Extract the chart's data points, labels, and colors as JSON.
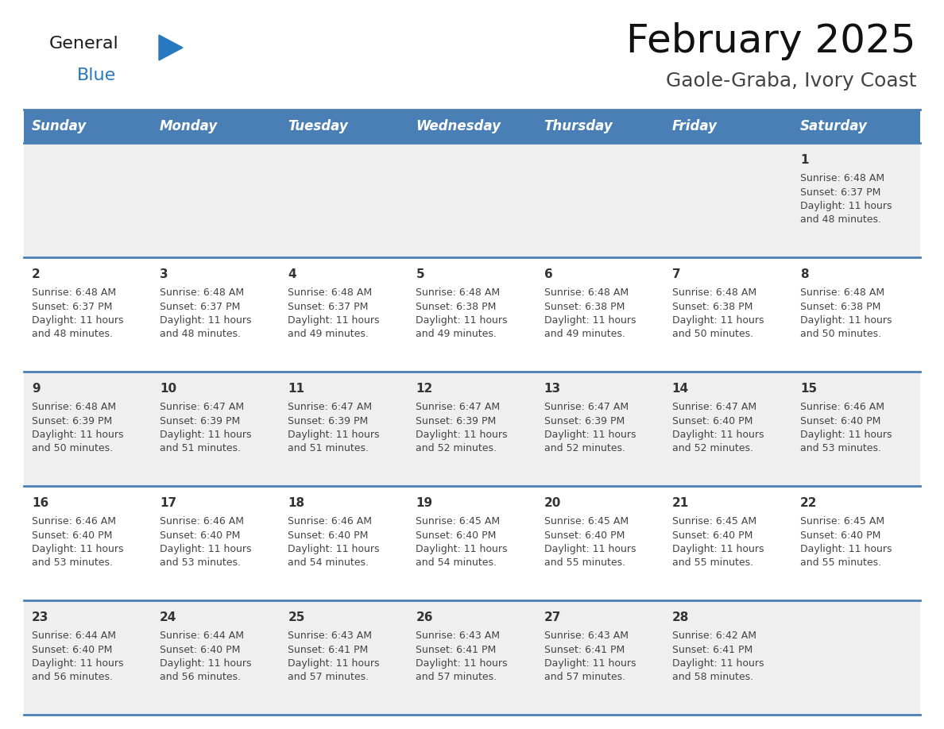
{
  "title": "February 2025",
  "subtitle": "Gaole-Graba, Ivory Coast",
  "days_of_week": [
    "Sunday",
    "Monday",
    "Tuesday",
    "Wednesday",
    "Thursday",
    "Friday",
    "Saturday"
  ],
  "header_bg": "#4a7fb5",
  "header_text_color": "#ffffff",
  "cell_bg_odd": "#efefef",
  "cell_bg_even": "#ffffff",
  "day_text_color": "#333333",
  "info_text_color": "#444444",
  "separator_color": "#4a7fb5",
  "calendar_data": [
    [
      null,
      null,
      null,
      null,
      null,
      null,
      {
        "day": "1",
        "sunrise": "6:48 AM",
        "sunset": "6:37 PM",
        "daylight_h": "11 hours",
        "daylight_m": "and 48 minutes."
      }
    ],
    [
      {
        "day": "2",
        "sunrise": "6:48 AM",
        "sunset": "6:37 PM",
        "daylight_h": "11 hours",
        "daylight_m": "and 48 minutes."
      },
      {
        "day": "3",
        "sunrise": "6:48 AM",
        "sunset": "6:37 PM",
        "daylight_h": "11 hours",
        "daylight_m": "and 48 minutes."
      },
      {
        "day": "4",
        "sunrise": "6:48 AM",
        "sunset": "6:37 PM",
        "daylight_h": "11 hours",
        "daylight_m": "and 49 minutes."
      },
      {
        "day": "5",
        "sunrise": "6:48 AM",
        "sunset": "6:38 PM",
        "daylight_h": "11 hours",
        "daylight_m": "and 49 minutes."
      },
      {
        "day": "6",
        "sunrise": "6:48 AM",
        "sunset": "6:38 PM",
        "daylight_h": "11 hours",
        "daylight_m": "and 49 minutes."
      },
      {
        "day": "7",
        "sunrise": "6:48 AM",
        "sunset": "6:38 PM",
        "daylight_h": "11 hours",
        "daylight_m": "and 50 minutes."
      },
      {
        "day": "8",
        "sunrise": "6:48 AM",
        "sunset": "6:38 PM",
        "daylight_h": "11 hours",
        "daylight_m": "and 50 minutes."
      }
    ],
    [
      {
        "day": "9",
        "sunrise": "6:48 AM",
        "sunset": "6:39 PM",
        "daylight_h": "11 hours",
        "daylight_m": "and 50 minutes."
      },
      {
        "day": "10",
        "sunrise": "6:47 AM",
        "sunset": "6:39 PM",
        "daylight_h": "11 hours",
        "daylight_m": "and 51 minutes."
      },
      {
        "day": "11",
        "sunrise": "6:47 AM",
        "sunset": "6:39 PM",
        "daylight_h": "11 hours",
        "daylight_m": "and 51 minutes."
      },
      {
        "day": "12",
        "sunrise": "6:47 AM",
        "sunset": "6:39 PM",
        "daylight_h": "11 hours",
        "daylight_m": "and 52 minutes."
      },
      {
        "day": "13",
        "sunrise": "6:47 AM",
        "sunset": "6:39 PM",
        "daylight_h": "11 hours",
        "daylight_m": "and 52 minutes."
      },
      {
        "day": "14",
        "sunrise": "6:47 AM",
        "sunset": "6:40 PM",
        "daylight_h": "11 hours",
        "daylight_m": "and 52 minutes."
      },
      {
        "day": "15",
        "sunrise": "6:46 AM",
        "sunset": "6:40 PM",
        "daylight_h": "11 hours",
        "daylight_m": "and 53 minutes."
      }
    ],
    [
      {
        "day": "16",
        "sunrise": "6:46 AM",
        "sunset": "6:40 PM",
        "daylight_h": "11 hours",
        "daylight_m": "and 53 minutes."
      },
      {
        "day": "17",
        "sunrise": "6:46 AM",
        "sunset": "6:40 PM",
        "daylight_h": "11 hours",
        "daylight_m": "and 53 minutes."
      },
      {
        "day": "18",
        "sunrise": "6:46 AM",
        "sunset": "6:40 PM",
        "daylight_h": "11 hours",
        "daylight_m": "and 54 minutes."
      },
      {
        "day": "19",
        "sunrise": "6:45 AM",
        "sunset": "6:40 PM",
        "daylight_h": "11 hours",
        "daylight_m": "and 54 minutes."
      },
      {
        "day": "20",
        "sunrise": "6:45 AM",
        "sunset": "6:40 PM",
        "daylight_h": "11 hours",
        "daylight_m": "and 55 minutes."
      },
      {
        "day": "21",
        "sunrise": "6:45 AM",
        "sunset": "6:40 PM",
        "daylight_h": "11 hours",
        "daylight_m": "and 55 minutes."
      },
      {
        "day": "22",
        "sunrise": "6:45 AM",
        "sunset": "6:40 PM",
        "daylight_h": "11 hours",
        "daylight_m": "and 55 minutes."
      }
    ],
    [
      {
        "day": "23",
        "sunrise": "6:44 AM",
        "sunset": "6:40 PM",
        "daylight_h": "11 hours",
        "daylight_m": "and 56 minutes."
      },
      {
        "day": "24",
        "sunrise": "6:44 AM",
        "sunset": "6:40 PM",
        "daylight_h": "11 hours",
        "daylight_m": "and 56 minutes."
      },
      {
        "day": "25",
        "sunrise": "6:43 AM",
        "sunset": "6:41 PM",
        "daylight_h": "11 hours",
        "daylight_m": "and 57 minutes."
      },
      {
        "day": "26",
        "sunrise": "6:43 AM",
        "sunset": "6:41 PM",
        "daylight_h": "11 hours",
        "daylight_m": "and 57 minutes."
      },
      {
        "day": "27",
        "sunrise": "6:43 AM",
        "sunset": "6:41 PM",
        "daylight_h": "11 hours",
        "daylight_m": "and 57 minutes."
      },
      {
        "day": "28",
        "sunrise": "6:42 AM",
        "sunset": "6:41 PM",
        "daylight_h": "11 hours",
        "daylight_m": "and 58 minutes."
      },
      null
    ]
  ],
  "logo_general_color": "#1a1a1a",
  "logo_blue_color": "#2878c0",
  "logo_triangle_color": "#2878c0",
  "title_fontsize": 36,
  "subtitle_fontsize": 18,
  "header_fontsize": 12,
  "day_num_fontsize": 11,
  "info_fontsize": 9
}
